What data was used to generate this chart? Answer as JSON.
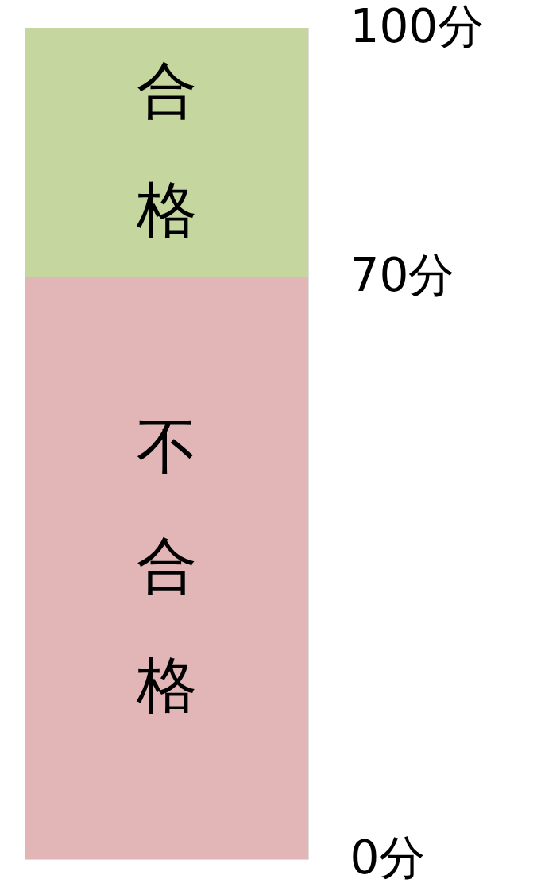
{
  "chart_data": {
    "type": "bar",
    "stacked": true,
    "categories": [
      null
    ],
    "series": [
      {
        "name": "不合格",
        "color": "#e2b6b7",
        "values": [
          70
        ]
      },
      {
        "name": "合格",
        "color": "#c5d69e",
        "values": [
          30
        ]
      }
    ],
    "ylim": [
      0,
      100
    ],
    "yticks": [
      {
        "value": 0,
        "label": "0分"
      },
      {
        "value": 70,
        "label": "70分"
      },
      {
        "value": 100,
        "label": "100分"
      }
    ],
    "legend": false
  }
}
